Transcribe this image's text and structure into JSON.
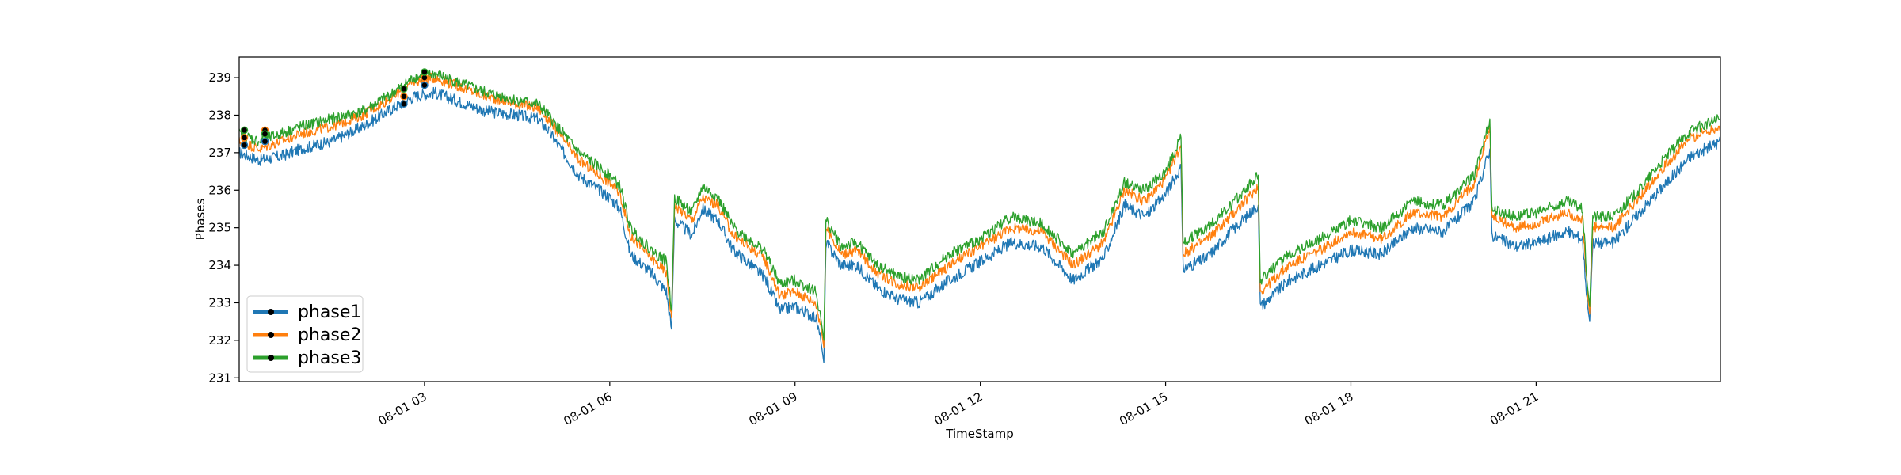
{
  "chart_data": {
    "type": "line",
    "xlabel": "TimeStamp",
    "ylabel": "Phases",
    "x_axis_type": "datetime",
    "x_range": [
      "08-01 00:00",
      "08-01 23:59"
    ],
    "ylim": [
      230.9,
      239.55
    ],
    "grid": false,
    "legend_position": "lower-left",
    "x_ticks": [
      {
        "label": "08-01 03",
        "time": "08-01 03:00"
      },
      {
        "label": "08-01 06",
        "time": "08-01 06:00"
      },
      {
        "label": "08-01 09",
        "time": "08-01 09:00"
      },
      {
        "label": "08-01 12",
        "time": "08-01 12:00"
      },
      {
        "label": "08-01 15",
        "time": "08-01 15:00"
      },
      {
        "label": "08-01 18",
        "time": "08-01 18:00"
      },
      {
        "label": "08-01 21",
        "time": "08-01 21:00"
      }
    ],
    "y_ticks": [
      "231",
      "232",
      "233",
      "234",
      "235",
      "236",
      "237",
      "238",
      "239"
    ],
    "series": [
      {
        "name": "phase2",
        "color": "#ff7f0e",
        "values": [
          [
            "08-01 00:00",
            237.3
          ],
          [
            "08-01 00:20",
            237.1
          ],
          [
            "08-01 00:40",
            237.3
          ],
          [
            "08-01 01:00",
            237.5
          ],
          [
            "08-01 01:30",
            237.7
          ],
          [
            "08-01 02:00",
            238.0
          ],
          [
            "08-01 02:30",
            238.5
          ],
          [
            "08-01 02:50",
            238.9
          ],
          [
            "08-01 03:10",
            239.0
          ],
          [
            "08-01 03:30",
            238.8
          ],
          [
            "08-01 04:00",
            238.5
          ],
          [
            "08-01 04:30",
            238.3
          ],
          [
            "08-01 04:50",
            238.2
          ],
          [
            "08-01 05:00",
            237.9
          ],
          [
            "08-01 05:30",
            236.8
          ],
          [
            "08-01 06:00",
            236.2
          ],
          [
            "08-01 06:10",
            235.9
          ],
          [
            "08-01 06:20",
            234.8
          ],
          [
            "08-01 06:40",
            234.2
          ],
          [
            "08-01 06:55",
            233.8
          ],
          [
            "08-01 07:00",
            232.6
          ],
          [
            "08-01 07:03",
            235.6
          ],
          [
            "08-01 07:20",
            235.2
          ],
          [
            "08-01 07:30",
            235.8
          ],
          [
            "08-01 07:45",
            235.6
          ],
          [
            "08-01 08:00",
            234.8
          ],
          [
            "08-01 08:30",
            234.2
          ],
          [
            "08-01 08:45",
            233.2
          ],
          [
            "08-01 09:00",
            233.3
          ],
          [
            "08-01 09:20",
            233.0
          ],
          [
            "08-01 09:25",
            232.4
          ],
          [
            "08-01 09:28",
            231.8
          ],
          [
            "08-01 09:30",
            235.0
          ],
          [
            "08-01 09:45",
            234.3
          ],
          [
            "08-01 10:00",
            234.4
          ],
          [
            "08-01 10:20",
            233.8
          ],
          [
            "08-01 10:40",
            233.5
          ],
          [
            "08-01 11:00",
            233.4
          ],
          [
            "08-01 11:30",
            234.0
          ],
          [
            "08-01 12:00",
            234.5
          ],
          [
            "08-01 12:30",
            235.0
          ],
          [
            "08-01 13:00",
            234.9
          ],
          [
            "08-01 13:30",
            234.0
          ],
          [
            "08-01 14:00",
            234.6
          ],
          [
            "08-01 14:20",
            236.0
          ],
          [
            "08-01 14:40",
            235.7
          ],
          [
            "08-01 15:00",
            236.3
          ],
          [
            "08-01 15:15",
            237.2
          ],
          [
            "08-01 15:17",
            234.3
          ],
          [
            "08-01 15:40",
            234.7
          ],
          [
            "08-01 16:00",
            235.2
          ],
          [
            "08-01 16:30",
            236.1
          ],
          [
            "08-01 16:32",
            233.3
          ],
          [
            "08-01 17:00",
            234.0
          ],
          [
            "08-01 17:30",
            234.4
          ],
          [
            "08-01 18:00",
            234.9
          ],
          [
            "08-01 18:30",
            234.7
          ],
          [
            "08-01 19:00",
            235.4
          ],
          [
            "08-01 19:30",
            235.3
          ],
          [
            "08-01 20:00",
            236.2
          ],
          [
            "08-01 20:15",
            237.7
          ],
          [
            "08-01 20:17",
            235.3
          ],
          [
            "08-01 20:40",
            235.0
          ],
          [
            "08-01 21:00",
            235.1
          ],
          [
            "08-01 21:30",
            235.4
          ],
          [
            "08-01 21:45",
            235.2
          ],
          [
            "08-01 21:50",
            233.2
          ],
          [
            "08-01 21:52",
            232.7
          ],
          [
            "08-01 21:55",
            235.0
          ],
          [
            "08-01 22:15",
            235.0
          ],
          [
            "08-01 22:40",
            235.8
          ],
          [
            "08-01 23:00",
            236.5
          ],
          [
            "08-01 23:30",
            237.4
          ],
          [
            "08-01 23:59",
            237.7
          ]
        ]
      },
      {
        "name": "phase1",
        "color": "#1f77b4",
        "values": [
          [
            "08-01 00:00",
            237.0
          ],
          [
            "08-01 00:20",
            236.8
          ],
          [
            "08-01 00:40",
            236.9
          ],
          [
            "08-01 01:00",
            237.1
          ],
          [
            "08-01 01:30",
            237.3
          ],
          [
            "08-01 02:00",
            237.7
          ],
          [
            "08-01 02:30",
            238.2
          ],
          [
            "08-01 02:50",
            238.5
          ],
          [
            "08-01 03:10",
            238.6
          ],
          [
            "08-01 03:30",
            238.4
          ],
          [
            "08-01 04:00",
            238.1
          ],
          [
            "08-01 04:30",
            238.0
          ],
          [
            "08-01 04:50",
            237.9
          ],
          [
            "08-01 05:00",
            237.6
          ],
          [
            "08-01 05:30",
            236.4
          ],
          [
            "08-01 06:00",
            235.8
          ],
          [
            "08-01 06:10",
            235.5
          ],
          [
            "08-01 06:20",
            234.3
          ],
          [
            "08-01 06:40",
            233.8
          ],
          [
            "08-01 06:55",
            233.3
          ],
          [
            "08-01 07:00",
            232.3
          ],
          [
            "08-01 07:03",
            235.2
          ],
          [
            "08-01 07:20",
            234.8
          ],
          [
            "08-01 07:30",
            235.5
          ],
          [
            "08-01 07:45",
            235.2
          ],
          [
            "08-01 08:00",
            234.4
          ],
          [
            "08-01 08:30",
            233.7
          ],
          [
            "08-01 08:45",
            232.8
          ],
          [
            "08-01 09:00",
            232.9
          ],
          [
            "08-01 09:20",
            232.6
          ],
          [
            "08-01 09:25",
            232.0
          ],
          [
            "08-01 09:28",
            231.4
          ],
          [
            "08-01 09:30",
            234.6
          ],
          [
            "08-01 09:45",
            234.0
          ],
          [
            "08-01 10:00",
            234.0
          ],
          [
            "08-01 10:20",
            233.4
          ],
          [
            "08-01 10:40",
            233.1
          ],
          [
            "08-01 11:00",
            233.0
          ],
          [
            "08-01 11:30",
            233.6
          ],
          [
            "08-01 12:00",
            234.1
          ],
          [
            "08-01 12:30",
            234.6
          ],
          [
            "08-01 13:00",
            234.5
          ],
          [
            "08-01 13:30",
            233.6
          ],
          [
            "08-01 14:00",
            234.2
          ],
          [
            "08-01 14:20",
            235.6
          ],
          [
            "08-01 14:40",
            235.3
          ],
          [
            "08-01 15:00",
            235.9
          ],
          [
            "08-01 15:15",
            236.6
          ],
          [
            "08-01 15:17",
            233.9
          ],
          [
            "08-01 15:40",
            234.2
          ],
          [
            "08-01 16:00",
            234.8
          ],
          [
            "08-01 16:30",
            235.6
          ],
          [
            "08-01 16:32",
            232.9
          ],
          [
            "08-01 17:00",
            233.6
          ],
          [
            "08-01 17:30",
            234.0
          ],
          [
            "08-01 18:00",
            234.4
          ],
          [
            "08-01 18:30",
            234.3
          ],
          [
            "08-01 19:00",
            235.0
          ],
          [
            "08-01 19:30",
            234.9
          ],
          [
            "08-01 20:00",
            235.7
          ],
          [
            "08-01 20:15",
            237.1
          ],
          [
            "08-01 20:17",
            234.8
          ],
          [
            "08-01 20:40",
            234.5
          ],
          [
            "08-01 21:00",
            234.6
          ],
          [
            "08-01 21:30",
            234.9
          ],
          [
            "08-01 21:45",
            234.7
          ],
          [
            "08-01 21:50",
            232.9
          ],
          [
            "08-01 21:52",
            232.5
          ],
          [
            "08-01 21:55",
            234.6
          ],
          [
            "08-01 22:15",
            234.6
          ],
          [
            "08-01 22:40",
            235.4
          ],
          [
            "08-01 23:00",
            236.0
          ],
          [
            "08-01 23:30",
            236.9
          ],
          [
            "08-01 23:59",
            237.3
          ]
        ]
      },
      {
        "name": "phase3",
        "color": "#2ca02c",
        "values": [
          [
            "08-01 00:00",
            237.5
          ],
          [
            "08-01 00:20",
            237.3
          ],
          [
            "08-01 00:40",
            237.5
          ],
          [
            "08-01 01:00",
            237.7
          ],
          [
            "08-01 01:30",
            237.9
          ],
          [
            "08-01 02:00",
            238.1
          ],
          [
            "08-01 02:30",
            238.6
          ],
          [
            "08-01 02:50",
            239.0
          ],
          [
            "08-01 03:10",
            239.1
          ],
          [
            "08-01 03:30",
            238.9
          ],
          [
            "08-01 04:00",
            238.6
          ],
          [
            "08-01 04:30",
            238.4
          ],
          [
            "08-01 04:50",
            238.3
          ],
          [
            "08-01 05:00",
            238.0
          ],
          [
            "08-01 05:30",
            237.0
          ],
          [
            "08-01 06:00",
            236.4
          ],
          [
            "08-01 06:10",
            236.1
          ],
          [
            "08-01 06:20",
            235.0
          ],
          [
            "08-01 06:40",
            234.4
          ],
          [
            "08-01 06:55",
            234.1
          ],
          [
            "08-01 07:00",
            232.8
          ],
          [
            "08-01 07:03",
            235.8
          ],
          [
            "08-01 07:20",
            235.4
          ],
          [
            "08-01 07:30",
            236.1
          ],
          [
            "08-01 07:45",
            235.8
          ],
          [
            "08-01 08:00",
            235.0
          ],
          [
            "08-01 08:30",
            234.4
          ],
          [
            "08-01 08:45",
            233.5
          ],
          [
            "08-01 09:00",
            233.6
          ],
          [
            "08-01 09:20",
            233.3
          ],
          [
            "08-01 09:25",
            232.6
          ],
          [
            "08-01 09:28",
            232.0
          ],
          [
            "08-01 09:30",
            235.2
          ],
          [
            "08-01 09:45",
            234.5
          ],
          [
            "08-01 10:00",
            234.6
          ],
          [
            "08-01 10:20",
            234.0
          ],
          [
            "08-01 10:40",
            233.7
          ],
          [
            "08-01 11:00",
            233.6
          ],
          [
            "08-01 11:30",
            234.3
          ],
          [
            "08-01 12:00",
            234.7
          ],
          [
            "08-01 12:30",
            235.3
          ],
          [
            "08-01 13:00",
            235.1
          ],
          [
            "08-01 13:30",
            234.3
          ],
          [
            "08-01 14:00",
            234.9
          ],
          [
            "08-01 14:20",
            236.2
          ],
          [
            "08-01 14:40",
            236.0
          ],
          [
            "08-01 15:00",
            236.5
          ],
          [
            "08-01 15:15",
            237.4
          ],
          [
            "08-01 15:17",
            234.6
          ],
          [
            "08-01 15:40",
            235.0
          ],
          [
            "08-01 16:00",
            235.5
          ],
          [
            "08-01 16:30",
            236.4
          ],
          [
            "08-01 16:32",
            233.6
          ],
          [
            "08-01 17:00",
            234.3
          ],
          [
            "08-01 17:30",
            234.7
          ],
          [
            "08-01 18:00",
            235.2
          ],
          [
            "08-01 18:30",
            235.0
          ],
          [
            "08-01 19:00",
            235.7
          ],
          [
            "08-01 19:30",
            235.6
          ],
          [
            "08-01 20:00",
            236.4
          ],
          [
            "08-01 20:15",
            237.9
          ],
          [
            "08-01 20:17",
            235.5
          ],
          [
            "08-01 20:40",
            235.3
          ],
          [
            "08-01 21:00",
            235.4
          ],
          [
            "08-01 21:30",
            235.7
          ],
          [
            "08-01 21:45",
            235.5
          ],
          [
            "08-01 21:50",
            233.4
          ],
          [
            "08-01 21:52",
            232.9
          ],
          [
            "08-01 21:55",
            235.3
          ],
          [
            "08-01 22:15",
            235.3
          ],
          [
            "08-01 22:40",
            236.0
          ],
          [
            "08-01 23:00",
            236.7
          ],
          [
            "08-01 23:30",
            237.6
          ],
          [
            "08-01 23:59",
            237.9
          ]
        ]
      }
    ],
    "highlighted_points": [
      {
        "series": "phase1",
        "values": [
          [
            "08-01 00:05",
            237.2
          ],
          [
            "08-01 00:25",
            237.3
          ],
          [
            "08-01 02:40",
            238.3
          ],
          [
            "08-01 03:00",
            238.8
          ]
        ]
      },
      {
        "series": "phase2",
        "values": [
          [
            "08-01 00:05",
            237.4
          ],
          [
            "08-01 00:25",
            237.6
          ],
          [
            "08-01 02:40",
            238.5
          ],
          [
            "08-01 03:00",
            239.0
          ]
        ]
      },
      {
        "series": "phase3",
        "values": [
          [
            "08-01 00:05",
            237.6
          ],
          [
            "08-01 00:25",
            237.5
          ],
          [
            "08-01 02:40",
            238.7
          ],
          [
            "08-01 03:00",
            239.15
          ]
        ]
      }
    ],
    "legend": [
      {
        "label": "phase1",
        "color": "#1f77b4"
      },
      {
        "label": "phase2",
        "color": "#ff7f0e"
      },
      {
        "label": "phase3",
        "color": "#2ca02c"
      }
    ]
  }
}
